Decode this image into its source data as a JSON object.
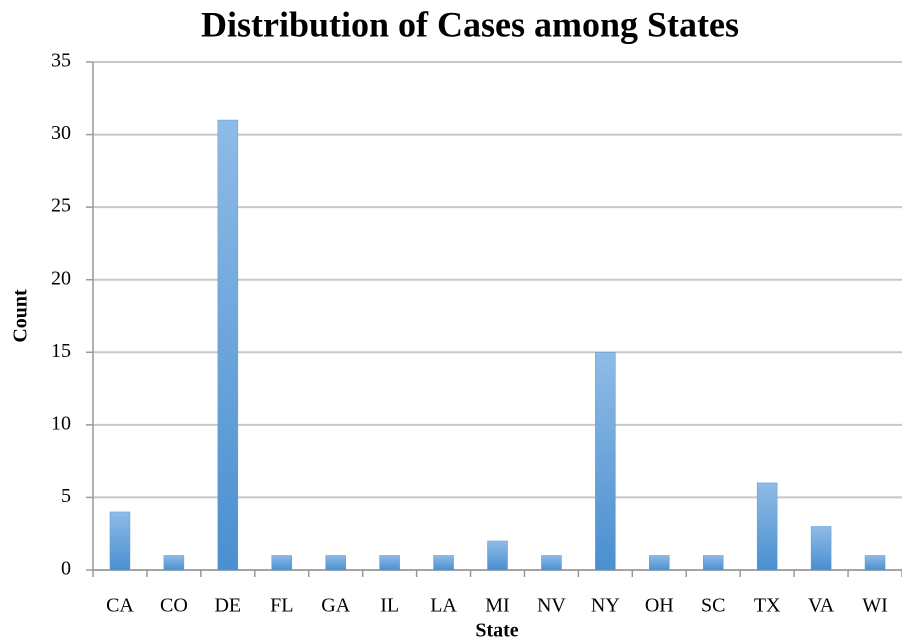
{
  "chart_data": {
    "type": "bar",
    "title": "Distribution of Cases among States",
    "x_label": "State",
    "y_label": "Count",
    "categories": [
      "CA",
      "CO",
      "DE",
      "FL",
      "GA",
      "IL",
      "LA",
      "MI",
      "NV",
      "NY",
      "OH",
      "SC",
      "TX",
      "VA",
      "WI"
    ],
    "values": [
      4,
      1,
      31,
      1,
      1,
      1,
      1,
      2,
      1,
      15,
      1,
      1,
      6,
      3,
      1
    ],
    "color": "#5b9bd5",
    "ylim": [
      0,
      35
    ],
    "yticks": [
      0,
      5,
      10,
      15,
      20,
      25,
      30,
      35
    ],
    "grid": true
  }
}
